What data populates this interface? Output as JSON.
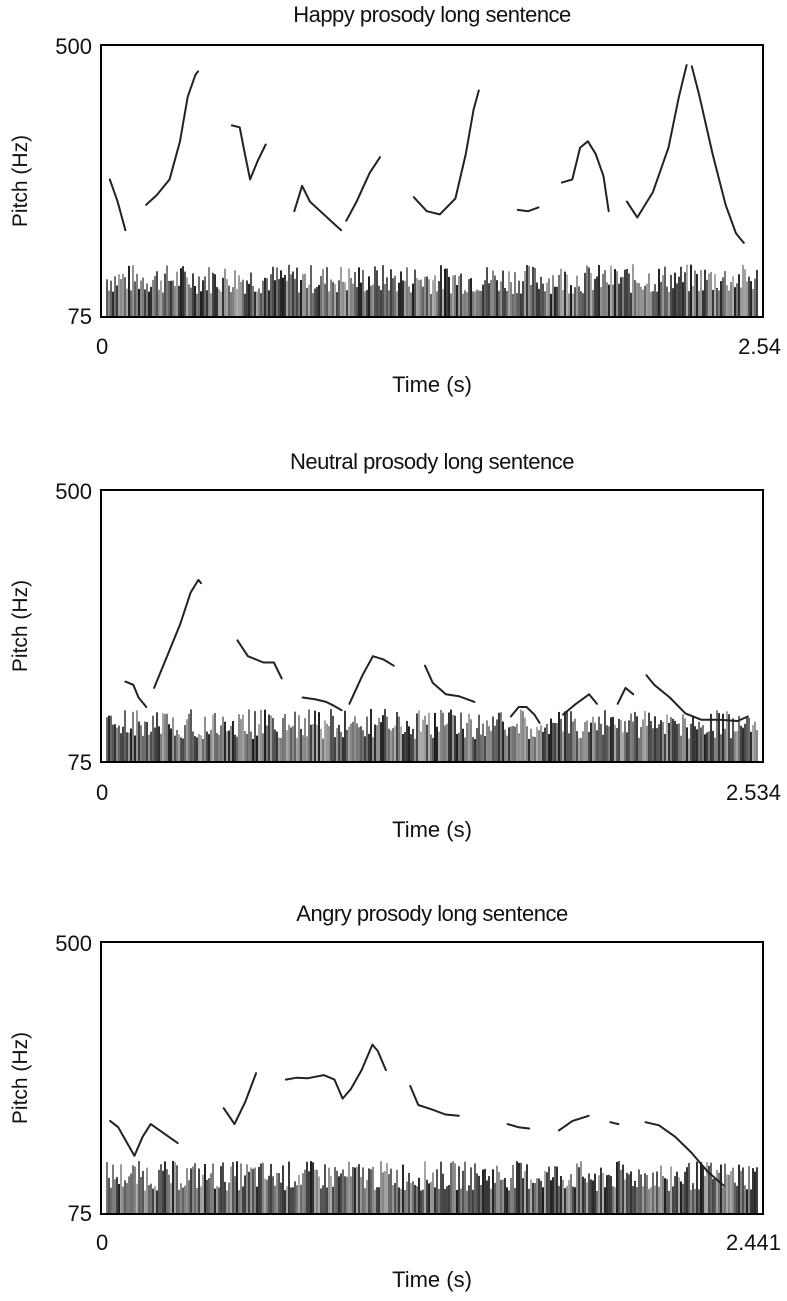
{
  "chart_data": [
    {
      "type": "line",
      "title": "Happy prosody long sentence",
      "xlabel": "Time (s)",
      "ylabel": "Pitch (Hz)",
      "xlim": [
        0,
        2.54
      ],
      "ylim": [
        75,
        500
      ],
      "x_tick_labels": [
        "0",
        "2.54"
      ],
      "y_tick_labels": [
        "75",
        "500"
      ],
      "series": [
        {
          "values": [
            [
              0.03,
              290
            ],
            [
              0.06,
              255
            ],
            [
              0.09,
              210
            ]
          ]
        },
        {
          "values": [
            [
              0.17,
              250
            ],
            [
              0.21,
              265
            ],
            [
              0.26,
              290
            ],
            [
              0.3,
              350
            ],
            [
              0.33,
              420
            ],
            [
              0.36,
              455
            ],
            [
              0.37,
              460
            ]
          ]
        },
        {
          "values": [
            [
              0.5,
              375
            ],
            [
              0.53,
              372
            ],
            [
              0.55,
              330
            ],
            [
              0.57,
              290
            ],
            [
              0.6,
              320
            ],
            [
              0.63,
              345
            ]
          ]
        },
        {
          "values": [
            [
              0.74,
              240
            ],
            [
              0.77,
              280
            ],
            [
              0.8,
              255
            ],
            [
              0.84,
              240
            ],
            [
              0.88,
              225
            ],
            [
              0.92,
              210
            ]
          ]
        },
        {
          "values": [
            [
              0.94,
              225
            ],
            [
              0.98,
              255
            ],
            [
              1.03,
              300
            ],
            [
              1.07,
              325
            ]
          ]
        },
        {
          "values": [
            [
              1.2,
              262
            ],
            [
              1.25,
              240
            ],
            [
              1.3,
              235
            ],
            [
              1.36,
              260
            ],
            [
              1.4,
              330
            ],
            [
              1.43,
              400
            ],
            [
              1.45,
              430
            ]
          ]
        },
        {
          "values": [
            [
              1.6,
              242
            ],
            [
              1.64,
              240
            ],
            [
              1.68,
              246
            ]
          ]
        },
        {
          "values": [
            [
              1.77,
              285
            ],
            [
              1.81,
              290
            ],
            [
              1.84,
              340
            ],
            [
              1.87,
              350
            ],
            [
              1.9,
              330
            ],
            [
              1.93,
              295
            ],
            [
              1.95,
              240
            ]
          ]
        },
        {
          "values": [
            [
              2.02,
              255
            ],
            [
              2.06,
              230
            ],
            [
              2.12,
              270
            ],
            [
              2.18,
              340
            ],
            [
              2.22,
              420
            ],
            [
              2.25,
              470
            ]
          ]
        },
        {
          "values": [
            [
              2.27,
              468
            ],
            [
              2.3,
              420
            ],
            [
              2.35,
              330
            ],
            [
              2.4,
              250
            ],
            [
              2.44,
              205
            ],
            [
              2.47,
              190
            ]
          ]
        }
      ]
    },
    {
      "type": "line",
      "title": "Neutral prosody long sentence",
      "xlabel": "Time (s)",
      "ylabel": "Pitch (Hz)",
      "xlim": [
        0,
        2.534
      ],
      "ylim": [
        75,
        500
      ],
      "x_tick_labels": [
        "0",
        "2.534"
      ],
      "y_tick_labels": [
        "75",
        "500"
      ],
      "series": [
        {
          "values": [
            [
              0.09,
              200
            ],
            [
              0.12,
              195
            ],
            [
              0.14,
              175
            ],
            [
              0.17,
              160
            ]
          ]
        },
        {
          "values": [
            [
              0.2,
              190
            ],
            [
              0.25,
              240
            ],
            [
              0.3,
              290
            ],
            [
              0.34,
              340
            ],
            [
              0.37,
              360
            ],
            [
              0.38,
              355
            ]
          ]
        },
        {
          "values": [
            [
              0.52,
              265
            ],
            [
              0.56,
              240
            ],
            [
              0.62,
              230
            ],
            [
              0.66,
              230
            ],
            [
              0.69,
              205
            ]
          ]
        },
        {
          "values": [
            [
              0.77,
              175
            ],
            [
              0.82,
              172
            ],
            [
              0.86,
              168
            ],
            [
              0.89,
              162
            ],
            [
              0.92,
              155
            ]
          ]
        },
        {
          "values": [
            [
              0.95,
              165
            ],
            [
              1.0,
              210
            ],
            [
              1.04,
              240
            ],
            [
              1.08,
              235
            ],
            [
              1.12,
              225
            ]
          ]
        },
        {
          "values": [
            [
              1.24,
              225
            ],
            [
              1.27,
              198
            ],
            [
              1.32,
              180
            ],
            [
              1.37,
              177
            ],
            [
              1.43,
              168
            ]
          ]
        },
        {
          "values": [
            [
              1.57,
              145
            ],
            [
              1.6,
              160
            ],
            [
              1.63,
              160
            ],
            [
              1.66,
              148
            ],
            [
              1.68,
              135
            ]
          ]
        },
        {
          "values": [
            [
              1.77,
              148
            ],
            [
              1.82,
              165
            ],
            [
              1.87,
              180
            ],
            [
              1.9,
              165
            ]
          ]
        },
        {
          "values": [
            [
              1.98,
              165
            ],
            [
              2.01,
              190
            ],
            [
              2.04,
              180
            ]
          ]
        },
        {
          "values": [
            [
              2.09,
              210
            ],
            [
              2.12,
              195
            ],
            [
              2.18,
              175
            ],
            [
              2.24,
              150
            ],
            [
              2.3,
              140
            ],
            [
              2.37,
              140
            ],
            [
              2.44,
              138
            ],
            [
              2.48,
              145
            ]
          ]
        }
      ]
    },
    {
      "type": "line",
      "title": "Angry prosody long sentence",
      "xlabel": "Time (s)",
      "ylabel": "Pitch (Hz)",
      "xlim": [
        0,
        2.441
      ],
      "ylim": [
        75,
        500
      ],
      "x_tick_labels": [
        "0",
        "2.441"
      ],
      "y_tick_labels": [
        "75",
        "500"
      ],
      "series": [
        {
          "values": [
            [
              0.03,
              220
            ],
            [
              0.06,
              210
            ],
            [
              0.1,
              180
            ],
            [
              0.12,
              165
            ],
            [
              0.15,
              195
            ],
            [
              0.18,
              215
            ],
            [
              0.23,
              200
            ],
            [
              0.28,
              185
            ]
          ]
        },
        {
          "values": [
            [
              0.45,
              240
            ],
            [
              0.49,
              215
            ],
            [
              0.53,
              250
            ],
            [
              0.57,
              295
            ]
          ]
        },
        {
          "values": [
            [
              0.68,
              285
            ],
            [
              0.72,
              288
            ],
            [
              0.76,
              287
            ],
            [
              0.82,
              292
            ],
            [
              0.86,
              285
            ],
            [
              0.89,
              255
            ],
            [
              0.92,
              270
            ],
            [
              0.96,
              300
            ],
            [
              1.0,
              340
            ],
            [
              1.02,
              330
            ],
            [
              1.05,
              300
            ]
          ]
        },
        {
          "values": [
            [
              1.14,
              275
            ],
            [
              1.17,
              245
            ],
            [
              1.22,
              238
            ],
            [
              1.27,
              230
            ],
            [
              1.32,
              228
            ]
          ]
        },
        {
          "values": [
            [
              1.5,
              215
            ],
            [
              1.54,
              210
            ],
            [
              1.58,
              208
            ]
          ]
        },
        {
          "values": [
            [
              1.69,
              205
            ],
            [
              1.74,
              220
            ],
            [
              1.8,
              228
            ]
          ]
        },
        {
          "values": [
            [
              1.88,
              218
            ],
            [
              1.91,
              215
            ]
          ]
        },
        {
          "values": [
            [
              2.01,
              218
            ],
            [
              2.06,
              213
            ],
            [
              2.12,
              195
            ],
            [
              2.18,
              170
            ],
            [
              2.24,
              140
            ],
            [
              2.3,
              118
            ]
          ]
        }
      ]
    }
  ]
}
